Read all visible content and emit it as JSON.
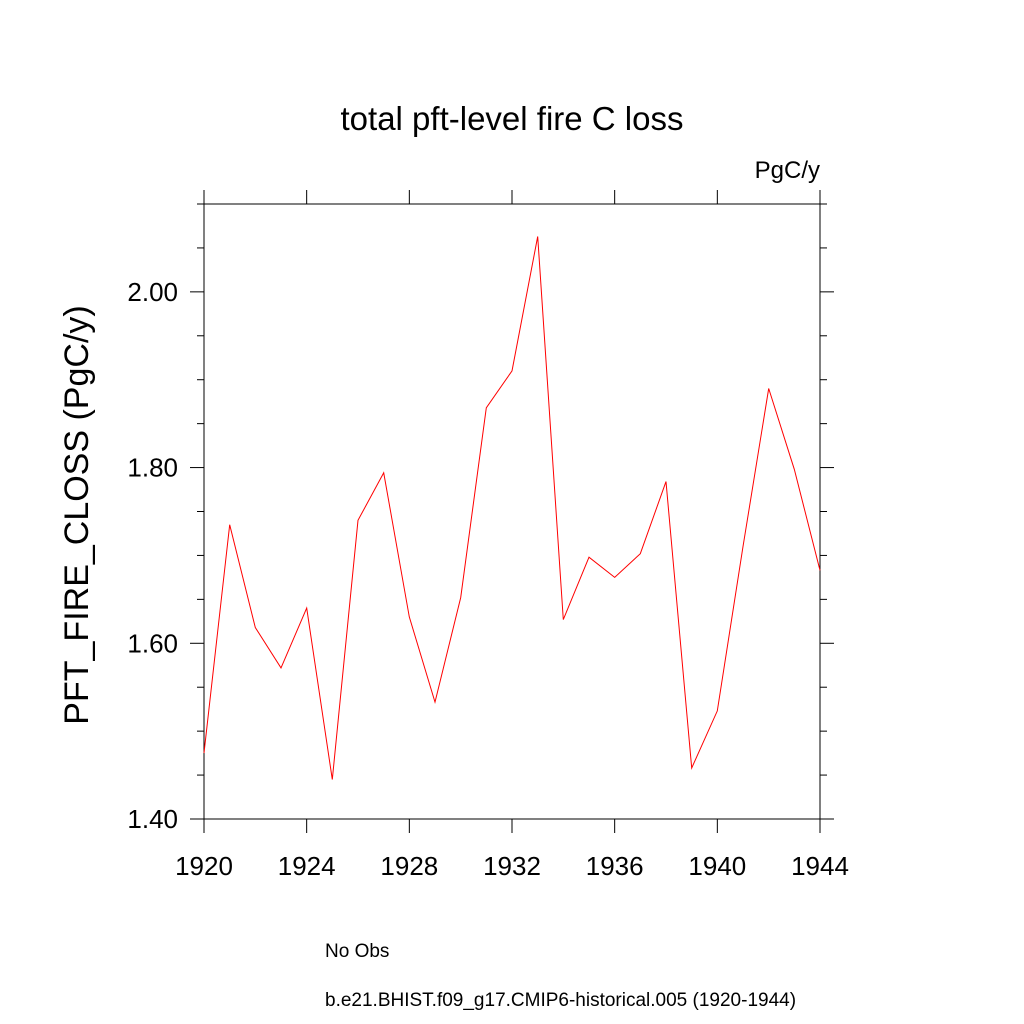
{
  "chart_data": {
    "type": "line",
    "title": "total pft-level fire C loss",
    "units_label": "PgC/y",
    "ylabel": "PFT_FIRE_CLOSS  (PgC/y)",
    "xlabel": "",
    "xlim": [
      1920,
      1944
    ],
    "ylim": [
      1.4,
      2.1
    ],
    "x_ticks": [
      1920,
      1924,
      1928,
      1932,
      1936,
      1940,
      1944
    ],
    "y_ticks": [
      "1.40",
      "1.60",
      "1.80",
      "2.00"
    ],
    "grid": false,
    "legend_placement": "bottom",
    "series": [
      {
        "name": "b.e21.BHIST.f09_g17.CMIP6-historical.005 (1920-1944)",
        "color": "#ff0000",
        "style": "solid",
        "x": [
          1920,
          1921,
          1922,
          1923,
          1924,
          1925,
          1926,
          1927,
          1928,
          1929,
          1930,
          1931,
          1932,
          1933,
          1934,
          1935,
          1936,
          1937,
          1938,
          1939,
          1940,
          1941,
          1942,
          1943,
          1944
        ],
        "values": [
          1.475,
          1.735,
          1.618,
          1.572,
          1.64,
          1.445,
          1.74,
          1.794,
          1.63,
          1.533,
          1.652,
          1.868,
          1.91,
          2.063,
          1.627,
          1.698,
          1.675,
          1.702,
          1.784,
          1.458,
          1.523,
          1.71,
          1.89,
          1.798,
          1.683
        ]
      }
    ],
    "legend": [
      {
        "label": "No Obs",
        "color": "#7b68c8",
        "style": "dashed"
      },
      {
        "label": "b.e21.BHIST.f09_g17.CMIP6-historical.005 (1920-1944)",
        "color": "#ff0000",
        "style": "solid"
      }
    ]
  }
}
